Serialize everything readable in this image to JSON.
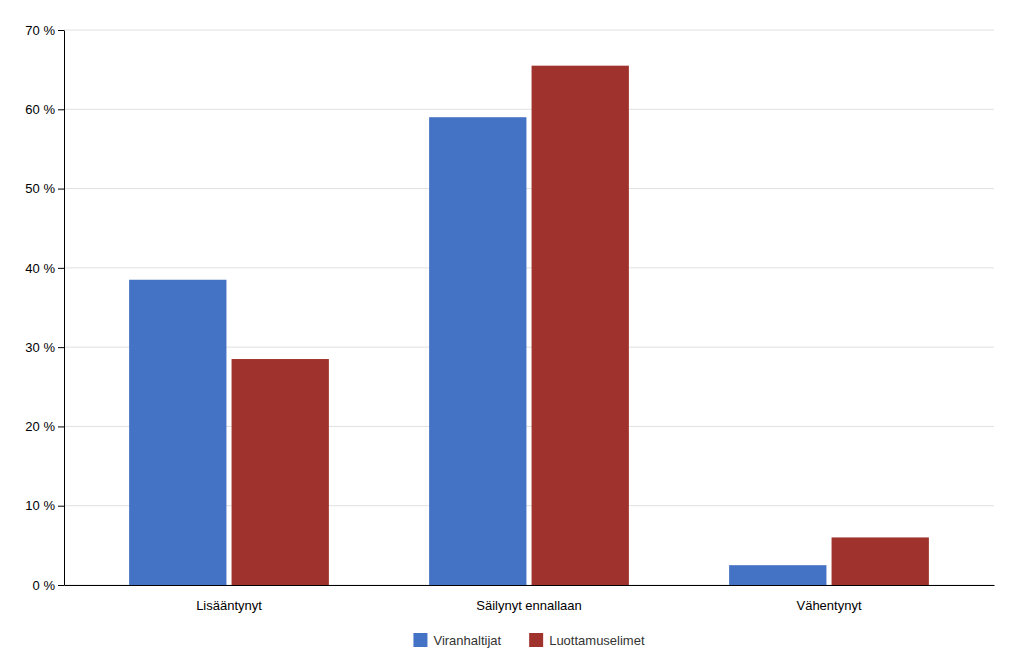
{
  "chart_data": {
    "type": "bar",
    "categories": [
      "Lisääntynyt",
      "Säilynyt ennallaan",
      "Vähentynyt"
    ],
    "series": [
      {
        "name": "Viranhaltijat",
        "color": "#4472C4",
        "values": [
          38.5,
          59.0,
          2.5
        ]
      },
      {
        "name": "Luottamuselimet",
        "color": "#A0322D",
        "values": [
          28.5,
          65.5,
          6.0
        ]
      }
    ],
    "ylim": [
      0,
      70
    ],
    "yticks": [
      {
        "value": 0,
        "label": "0 %"
      },
      {
        "value": 10,
        "label": "10 %"
      },
      {
        "value": 20,
        "label": "20 %"
      },
      {
        "value": 30,
        "label": "30 %"
      },
      {
        "value": 40,
        "label": "40 %"
      },
      {
        "value": 50,
        "label": "50 %"
      },
      {
        "value": 60,
        "label": "60 %"
      },
      {
        "value": 70,
        "label": "70 %"
      }
    ],
    "grid": true,
    "legend": "bottom"
  }
}
